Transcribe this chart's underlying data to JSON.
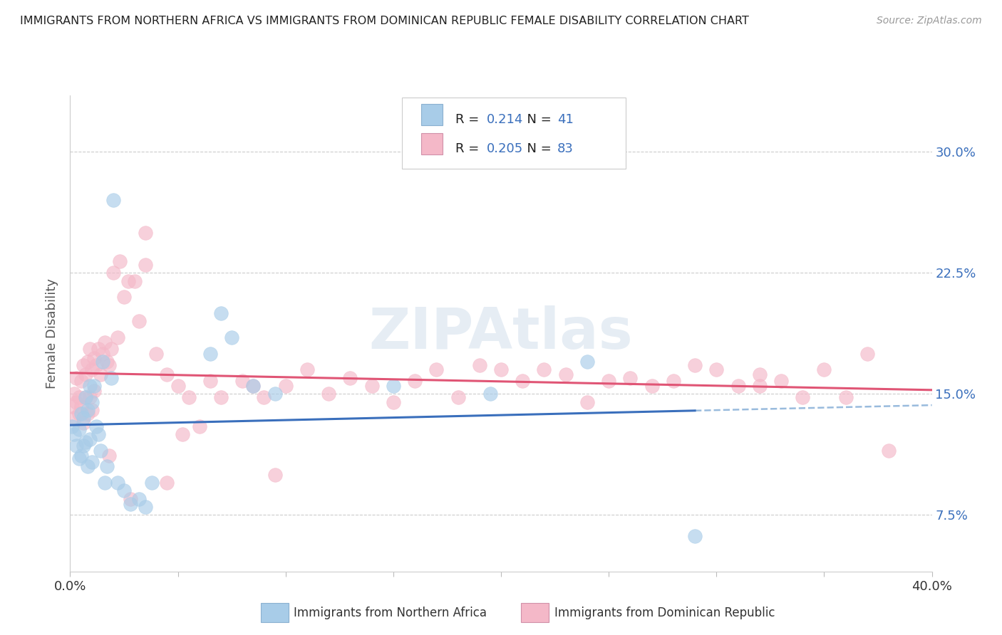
{
  "title": "IMMIGRANTS FROM NORTHERN AFRICA VS IMMIGRANTS FROM DOMINICAN REPUBLIC FEMALE DISABILITY CORRELATION CHART",
  "source": "Source: ZipAtlas.com",
  "ylabel": "Female Disability",
  "yticks_labels": [
    "7.5%",
    "15.0%",
    "22.5%",
    "30.0%"
  ],
  "ytick_vals": [
    0.075,
    0.15,
    0.225,
    0.3
  ],
  "xlim": [
    0.0,
    0.4
  ],
  "ylim": [
    0.04,
    0.335
  ],
  "xtick_vals": [
    0.0,
    0.05,
    0.1,
    0.15,
    0.2,
    0.25,
    0.3,
    0.35,
    0.4
  ],
  "color_blue": "#a8cce8",
  "color_pink": "#f4b8c8",
  "trendline_blue": "#3a6fbc",
  "trendline_pink": "#e05575",
  "trendline_blue_dashed": "#99bbdd",
  "R_blue": 0.214,
  "N_blue": 41,
  "R_pink": 0.205,
  "N_pink": 83,
  "blue_x": [
    0.001,
    0.002,
    0.003,
    0.004,
    0.004,
    0.005,
    0.005,
    0.006,
    0.006,
    0.007,
    0.007,
    0.008,
    0.008,
    0.009,
    0.009,
    0.01,
    0.01,
    0.011,
    0.012,
    0.013,
    0.014,
    0.015,
    0.016,
    0.017,
    0.019,
    0.02,
    0.022,
    0.025,
    0.028,
    0.032,
    0.035,
    0.038,
    0.065,
    0.07,
    0.075,
    0.085,
    0.095,
    0.15,
    0.195,
    0.24,
    0.29
  ],
  "blue_y": [
    0.13,
    0.125,
    0.118,
    0.11,
    0.128,
    0.112,
    0.138,
    0.118,
    0.135,
    0.12,
    0.148,
    0.105,
    0.14,
    0.122,
    0.155,
    0.108,
    0.145,
    0.155,
    0.13,
    0.125,
    0.115,
    0.17,
    0.095,
    0.105,
    0.16,
    0.27,
    0.095,
    0.09,
    0.082,
    0.085,
    0.08,
    0.095,
    0.175,
    0.2,
    0.185,
    0.155,
    0.15,
    0.155,
    0.15,
    0.17,
    0.062
  ],
  "pink_x": [
    0.001,
    0.002,
    0.002,
    0.003,
    0.003,
    0.004,
    0.004,
    0.005,
    0.005,
    0.006,
    0.006,
    0.007,
    0.007,
    0.008,
    0.008,
    0.009,
    0.009,
    0.01,
    0.01,
    0.011,
    0.011,
    0.012,
    0.013,
    0.014,
    0.015,
    0.016,
    0.017,
    0.018,
    0.019,
    0.02,
    0.022,
    0.023,
    0.025,
    0.027,
    0.03,
    0.032,
    0.035,
    0.04,
    0.045,
    0.05,
    0.055,
    0.06,
    0.065,
    0.07,
    0.08,
    0.085,
    0.09,
    0.095,
    0.1,
    0.11,
    0.12,
    0.13,
    0.14,
    0.15,
    0.16,
    0.17,
    0.18,
    0.19,
    0.2,
    0.21,
    0.22,
    0.23,
    0.24,
    0.25,
    0.26,
    0.27,
    0.28,
    0.29,
    0.3,
    0.31,
    0.32,
    0.33,
    0.34,
    0.35,
    0.36,
    0.37,
    0.38,
    0.32,
    0.045,
    0.028,
    0.018,
    0.035,
    0.052
  ],
  "pink_y": [
    0.142,
    0.15,
    0.135,
    0.145,
    0.16,
    0.138,
    0.148,
    0.142,
    0.158,
    0.132,
    0.168,
    0.148,
    0.162,
    0.138,
    0.17,
    0.148,
    0.178,
    0.14,
    0.165,
    0.152,
    0.172,
    0.168,
    0.178,
    0.162,
    0.175,
    0.182,
    0.17,
    0.168,
    0.178,
    0.225,
    0.185,
    0.232,
    0.21,
    0.22,
    0.22,
    0.195,
    0.23,
    0.175,
    0.162,
    0.155,
    0.148,
    0.13,
    0.158,
    0.148,
    0.158,
    0.155,
    0.148,
    0.1,
    0.155,
    0.165,
    0.15,
    0.16,
    0.155,
    0.145,
    0.158,
    0.165,
    0.148,
    0.168,
    0.165,
    0.158,
    0.165,
    0.162,
    0.145,
    0.158,
    0.16,
    0.155,
    0.158,
    0.168,
    0.165,
    0.155,
    0.162,
    0.158,
    0.148,
    0.165,
    0.148,
    0.175,
    0.115,
    0.155,
    0.095,
    0.085,
    0.112,
    0.25,
    0.125
  ]
}
